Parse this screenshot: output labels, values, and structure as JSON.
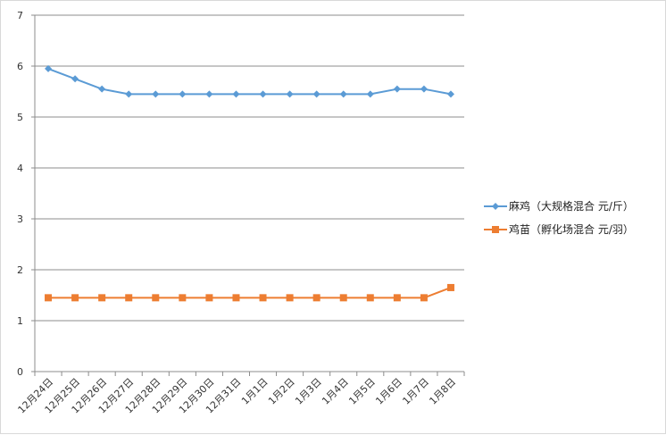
{
  "chart_data": {
    "type": "line",
    "categories": [
      "12月24日",
      "12月25日",
      "12月26日",
      "12月27日",
      "12月28日",
      "12月29日",
      "12月30日",
      "12月31日",
      "1月1日",
      "1月2日",
      "1月3日",
      "1月4日",
      "1月5日",
      "1月6日",
      "1月7日",
      "1月8日"
    ],
    "series": [
      {
        "name": "麻鸡（大规格混合 元/斤）",
        "color": "#5b9bd5",
        "marker": "diamond",
        "values": [
          5.95,
          5.75,
          5.55,
          5.45,
          5.45,
          5.45,
          5.45,
          5.45,
          5.45,
          5.45,
          5.45,
          5.45,
          5.45,
          5.55,
          5.55,
          5.45
        ]
      },
      {
        "name": "鸡苗（孵化场混合 元/羽）",
        "color": "#ed7d31",
        "marker": "square",
        "values": [
          1.45,
          1.45,
          1.45,
          1.45,
          1.45,
          1.45,
          1.45,
          1.45,
          1.45,
          1.45,
          1.45,
          1.45,
          1.45,
          1.45,
          1.45,
          1.65
        ]
      }
    ],
    "yticks": [
      "0",
      "1",
      "2",
      "3",
      "4",
      "5",
      "6",
      "7"
    ],
    "ylim": [
      0,
      7
    ],
    "grid": true,
    "legend_position": "right",
    "title": "",
    "xlabel": "",
    "ylabel": ""
  }
}
